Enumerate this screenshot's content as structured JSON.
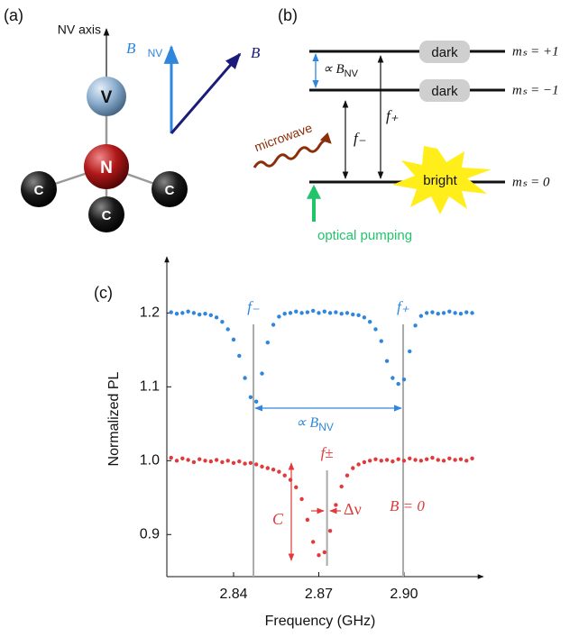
{
  "panel_a": {
    "label": "(a)",
    "axis_label": "NV axis",
    "atoms": [
      "V",
      "N",
      "C",
      "C",
      "C"
    ],
    "b_nv": {
      "text": "B⃗",
      "sub": "NV"
    },
    "b": "B⃗"
  },
  "panel_b": {
    "label": "(b)",
    "levels": [
      {
        "state": "dark",
        "ms": "mₛ = +1"
      },
      {
        "state": "dark",
        "ms": "mₛ = −1"
      },
      {
        "state": "bright",
        "ms": "mₛ = 0"
      }
    ],
    "splitting": {
      "text": "∝ B",
      "sub": "NV"
    },
    "f_plus": "f₊",
    "f_minus": "f₋",
    "microwave": "microwave",
    "pumping": "optical pumping"
  },
  "chart_data": {
    "type": "scatter",
    "panel_label": "(c)",
    "x_label": "Frequency (GHz)",
    "y_label": "Normalized PL",
    "xlim": [
      2.8165,
      2.927
    ],
    "ylim": [
      0.843,
      1.27
    ],
    "xticks": [
      2.84,
      2.87,
      {
        "value": 2.9,
        "label": "2.90"
      }
    ],
    "yticks": [
      0.9,
      {
        "value": 1,
        "label": "1.0"
      },
      1.1,
      1.2
    ],
    "x": [
      2.818,
      2.82,
      2.822,
      2.824,
      2.826,
      2.828,
      2.83,
      2.832,
      2.834,
      2.836,
      2.838,
      2.84,
      2.842,
      2.844,
      2.846,
      2.848,
      2.85,
      2.852,
      2.854,
      2.856,
      2.858,
      2.86,
      2.862,
      2.864,
      2.866,
      2.868,
      2.87,
      2.872,
      2.874,
      2.876,
      2.878,
      2.88,
      2.882,
      2.884,
      2.886,
      2.888,
      2.89,
      2.892,
      2.894,
      2.896,
      2.898,
      2.9,
      2.902,
      2.904,
      2.906,
      2.908,
      2.91,
      2.912,
      2.914,
      2.916,
      2.918,
      2.92,
      2.922,
      2.924
    ],
    "series": [
      {
        "color": "#2f86dd",
        "values": [
          1.201,
          1.199,
          1.2,
          1.202,
          1.2,
          1.198,
          1.199,
          1.197,
          1.194,
          1.188,
          1.178,
          1.164,
          1.142,
          1.112,
          1.086,
          1.08,
          1.118,
          1.16,
          1.184,
          1.195,
          1.199,
          1.2,
          1.202,
          1.2,
          1.201,
          1.203,
          1.2,
          1.202,
          1.2,
          1.201,
          1.199,
          1.2,
          1.198,
          1.197,
          1.194,
          1.188,
          1.178,
          1.162,
          1.135,
          1.112,
          1.104,
          1.11,
          1.148,
          1.183,
          1.196,
          1.2,
          1.201,
          1.199,
          1.2,
          1.202,
          1.2,
          1.199,
          1.201,
          1.2
        ]
      },
      {
        "color": "#e03a3a",
        "values": [
          1.004,
          1.0,
          1.003,
          1.001,
          0.998,
          1.002,
          1.0,
          0.999,
          1.001,
          0.998,
          1.0,
          0.997,
          0.999,
          0.996,
          0.997,
          0.995,
          0.992,
          0.99,
          0.988,
          0.985,
          0.98,
          0.974,
          0.964,
          0.948,
          0.92,
          0.89,
          0.872,
          0.876,
          0.905,
          0.94,
          0.965,
          0.98,
          0.99,
          0.995,
          0.998,
          1.0,
          1.002,
          1.0,
          1.001,
          0.999,
          1.002,
          1.0,
          1.003,
          1.001,
          1.0,
          1.002,
          1.004,
          1.001,
          1.0,
          1.003,
          1.001,
          1.002,
          1.0,
          1.003
        ]
      }
    ],
    "resonances": [
      {
        "x": 2.847,
        "label": "f₋",
        "color": "#2f86dd"
      },
      {
        "x": 2.8997,
        "label": "f₊",
        "color": "#2f86dd"
      },
      {
        "x": 2.8729,
        "label": "f±",
        "color": "#e03a3a"
      }
    ],
    "splitting": {
      "text": "∝ B",
      "sub": "NV"
    },
    "zero_field": "B = 0",
    "contrast": "C",
    "linewidth": "Δν"
  }
}
